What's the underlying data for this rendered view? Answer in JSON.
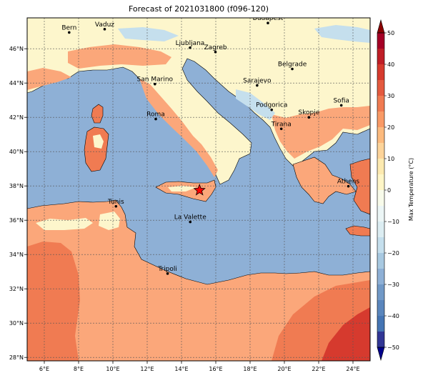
{
  "title": "Forecast of 2021031800 (f096-120)",
  "map": {
    "lon_range": [
      5,
      25
    ],
    "lat_range": [
      27.8,
      47.8
    ],
    "x_ticks": [
      {
        "lon": 6,
        "label": "6°E"
      },
      {
        "lon": 8,
        "label": "8°E"
      },
      {
        "lon": 10,
        "label": "10°E"
      },
      {
        "lon": 12,
        "label": "12°E"
      },
      {
        "lon": 14,
        "label": "14°E"
      },
      {
        "lon": 16,
        "label": "16°E"
      },
      {
        "lon": 18,
        "label": "18°E"
      },
      {
        "lon": 20,
        "label": "20°E"
      },
      {
        "lon": 22,
        "label": "22°E"
      },
      {
        "lon": 24,
        "label": "24°E"
      }
    ],
    "y_ticks": [
      {
        "lat": 28,
        "label": "28°N"
      },
      {
        "lat": 30,
        "label": "30°N"
      },
      {
        "lat": 32,
        "label": "32°N"
      },
      {
        "lat": 34,
        "label": "34°N"
      },
      {
        "lat": 36,
        "label": "36°N"
      },
      {
        "lat": 38,
        "label": "38°N"
      },
      {
        "lat": 40,
        "label": "40°N"
      },
      {
        "lat": 42,
        "label": "42°N"
      },
      {
        "lat": 44,
        "label": "44°N"
      },
      {
        "lat": 46,
        "label": "46°N"
      }
    ],
    "cities": [
      {
        "name": "Bern",
        "lon": 7.45,
        "lat": 46.95
      },
      {
        "name": "Vaduz",
        "lon": 9.52,
        "lat": 47.14
      },
      {
        "name": "Budapest",
        "lon": 19.04,
        "lat": 47.5
      },
      {
        "name": "Ljubljana",
        "lon": 14.5,
        "lat": 46.06
      },
      {
        "name": "Zagreb",
        "lon": 15.98,
        "lat": 45.81
      },
      {
        "name": "Belgrade",
        "lon": 20.46,
        "lat": 44.82
      },
      {
        "name": "San Marino",
        "lon": 12.45,
        "lat": 43.94
      },
      {
        "name": "Sarajevo",
        "lon": 18.41,
        "lat": 43.86
      },
      {
        "name": "Sofia",
        "lon": 23.32,
        "lat": 42.7
      },
      {
        "name": "Podgorica",
        "lon": 19.26,
        "lat": 42.44
      },
      {
        "name": "Skopje",
        "lon": 21.43,
        "lat": 42.0
      },
      {
        "name": "Roma",
        "lon": 12.5,
        "lat": 41.9
      },
      {
        "name": "Tirana",
        "lon": 19.82,
        "lat": 41.33
      },
      {
        "name": "Athens",
        "lon": 23.73,
        "lat": 37.98
      },
      {
        "name": "Tunis",
        "lon": 10.18,
        "lat": 36.81
      },
      {
        "name": "La Valette",
        "lon": 14.51,
        "lat": 35.9
      },
      {
        "name": "Tripoli",
        "lon": 13.19,
        "lat": 32.89
      }
    ],
    "marker": {
      "symbol": "star",
      "lon": 15.05,
      "lat": 37.75,
      "color": "#ff0000"
    }
  },
  "colorbar": {
    "label": "Max Temperature (°C)",
    "levels": [
      -50,
      -45,
      -40,
      -35,
      -30,
      -25,
      -20,
      -15,
      -10,
      -5,
      0,
      5,
      10,
      15,
      20,
      25,
      30,
      35,
      40,
      45,
      50
    ],
    "colors": [
      "#313695",
      "#4575b4",
      "#5a86bd",
      "#7199c7",
      "#8eb0d6",
      "#a8c9e1",
      "#c5dfed",
      "#dcedf2",
      "#ecf6f6",
      "#f8fbea",
      "#fff6c7",
      "#fdeab0",
      "#fdd49a",
      "#fcba7e",
      "#f99a66",
      "#f07b52",
      "#e45a3f",
      "#d63a2e",
      "#bf1e27",
      "#a50026"
    ],
    "ticks": [
      {
        "value": -50,
        "label": "−50"
      },
      {
        "value": -40,
        "label": "−40"
      },
      {
        "value": -30,
        "label": "−30"
      },
      {
        "value": -20,
        "label": "−20"
      },
      {
        "value": -10,
        "label": "−10"
      },
      {
        "value": 0,
        "label": "0"
      },
      {
        "value": 10,
        "label": "10"
      },
      {
        "value": 20,
        "label": "20"
      },
      {
        "value": 30,
        "label": "30"
      },
      {
        "value": 40,
        "label": "40"
      },
      {
        "value": 50,
        "label": "50"
      }
    ],
    "extend_colors": {
      "low": "#00008b",
      "high": "#8b0000"
    }
  },
  "colors": {
    "sea": "#8eb0d6",
    "sea_light": "#c5dfed",
    "land_cool": "#fdf6cc",
    "land_warm": "#fba77a",
    "land_hot": "#f07b52",
    "land_hotter": "#d63a2e",
    "border": "#000000"
  }
}
